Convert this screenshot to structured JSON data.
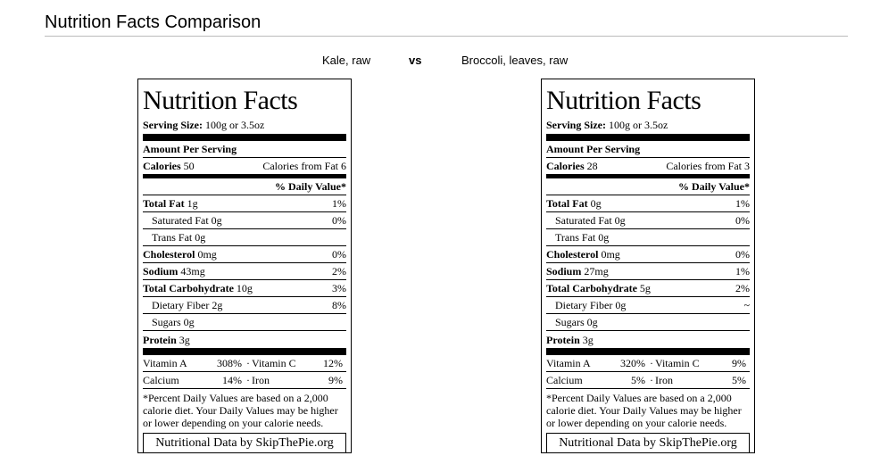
{
  "page": {
    "title": "Nutrition Facts Comparison",
    "vs_label": "vs"
  },
  "labels": [
    {
      "food_name": "Kale, raw",
      "heading": "Nutrition Facts",
      "serving_label": "Serving Size:",
      "serving_value": "100g or 3.5oz",
      "amount_per_serving": "Amount Per Serving",
      "calories_label": "Calories",
      "calories_value": "50",
      "calories_from_fat": "Calories from Fat 6",
      "daily_value_header": "% Daily Value*",
      "total_fat_label": "Total Fat",
      "total_fat_value": "1g",
      "total_fat_dv": "1%",
      "saturated_fat": "Saturated Fat 0g",
      "saturated_fat_dv": "0%",
      "trans_fat": "Trans Fat 0g",
      "cholesterol_label": "Cholesterol",
      "cholesterol_value": "0mg",
      "cholesterol_dv": "0%",
      "sodium_label": "Sodium",
      "sodium_value": "43mg",
      "sodium_dv": "2%",
      "carb_label": "Total Carbohydrate",
      "carb_value": "10g",
      "carb_dv": "3%",
      "fiber": "Dietary Fiber 2g",
      "fiber_dv": "8%",
      "sugars": "Sugars 0g",
      "protein_label": "Protein",
      "protein_value": "3g",
      "vitamin_a_label": "Vitamin A",
      "vitamin_a_dv": "308%",
      "vitamin_c_label": "Vitamin C",
      "vitamin_c_dv": "12%",
      "calcium_label": "Calcium",
      "calcium_dv": "14%",
      "iron_label": "Iron",
      "iron_dv": "9%",
      "separator": "·",
      "footnote": "*Percent Daily Values are based on a 2,000 calorie diet. Your Daily Values may be higher or lower depending on your calorie needs.",
      "credit": "Nutritional Data by SkipThePie.org"
    },
    {
      "food_name": "Broccoli, leaves, raw",
      "heading": "Nutrition Facts",
      "serving_label": "Serving Size:",
      "serving_value": "100g or 3.5oz",
      "amount_per_serving": "Amount Per Serving",
      "calories_label": "Calories",
      "calories_value": "28",
      "calories_from_fat": "Calories from Fat 3",
      "daily_value_header": "% Daily Value*",
      "total_fat_label": "Total Fat",
      "total_fat_value": "0g",
      "total_fat_dv": "1%",
      "saturated_fat": "Saturated Fat 0g",
      "saturated_fat_dv": "0%",
      "trans_fat": "Trans Fat 0g",
      "cholesterol_label": "Cholesterol",
      "cholesterol_value": "0mg",
      "cholesterol_dv": "0%",
      "sodium_label": "Sodium",
      "sodium_value": "27mg",
      "sodium_dv": "1%",
      "carb_label": "Total Carbohydrate",
      "carb_value": "5g",
      "carb_dv": "2%",
      "fiber": "Dietary Fiber 0g",
      "fiber_dv": "~",
      "sugars": "Sugars 0g",
      "protein_label": "Protein",
      "protein_value": "3g",
      "vitamin_a_label": "Vitamin A",
      "vitamin_a_dv": "320%",
      "vitamin_c_label": "Vitamin C",
      "vitamin_c_dv": "9%",
      "calcium_label": "Calcium",
      "calcium_dv": "5%",
      "iron_label": "Iron",
      "iron_dv": "5%",
      "separator": "·",
      "footnote": "*Percent Daily Values are based on a 2,000 calorie diet. Your Daily Values may be higher or lower depending on your calorie needs.",
      "credit": "Nutritional Data by SkipThePie.org"
    }
  ]
}
